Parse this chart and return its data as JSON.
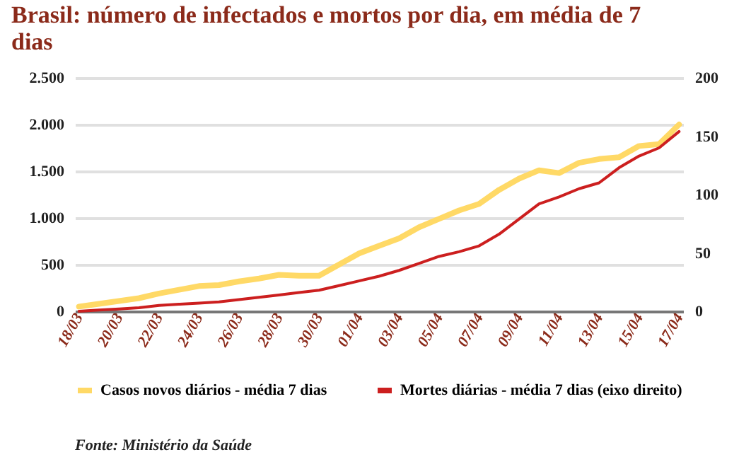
{
  "chart_data": {
    "type": "line",
    "title": "Brasil: número de infectados e mortos por dia, em média de 7 dias",
    "categories": [
      "18/03",
      null,
      "20/03",
      null,
      "22/03",
      null,
      "24/03",
      null,
      "26/03",
      null,
      "28/03",
      null,
      "30/03",
      null,
      "01/04",
      null,
      "03/04",
      null,
      "05/04",
      null,
      "07/04",
      null,
      "09/04",
      null,
      "11/04",
      null,
      "13/04",
      null,
      "15/04",
      null,
      "17/04"
    ],
    "series": [
      {
        "name": "Casos novos diários  - média 7 dias",
        "color": "#ffd966",
        "values": [
          50,
          80,
          110,
          140,
          190,
          230,
          270,
          280,
          320,
          350,
          390,
          380,
          380,
          500,
          620,
          700,
          780,
          900,
          990,
          1080,
          1150,
          1300,
          1420,
          1510,
          1480,
          1590,
          1630,
          1650,
          1770,
          1790,
          2000
        ]
      },
      {
        "name": "Mortes diárias - média 7 dias (eixo direito)",
        "color": "#cc1f1f",
        "axis": "y2",
        "values": [
          0,
          1,
          2,
          3,
          5,
          6,
          7,
          8,
          10,
          12,
          14,
          16,
          18,
          22,
          26,
          30,
          35,
          41,
          47,
          51,
          56,
          66,
          79,
          92,
          98,
          105,
          110,
          123,
          133,
          140,
          154
        ]
      }
    ],
    "ylim": [
      0,
      2500
    ],
    "yticks": [
      0,
      {
        "value": 500,
        "label": "500"
      },
      {
        "value": 1000,
        "label": "1.000"
      },
      {
        "value": 1500,
        "label": "1.500"
      },
      {
        "value": 2000,
        "label": "2.000"
      },
      {
        "value": 2500,
        "label": "2.500"
      }
    ],
    "y2lim": [
      0,
      200
    ],
    "y2ticks": [
      0,
      50,
      100,
      150,
      200
    ],
    "grid": "y",
    "legend": "bottom",
    "line_style": "solid",
    "marker": "none",
    "annotations": [
      "Fonte: Ministério da Saúde"
    ]
  }
}
